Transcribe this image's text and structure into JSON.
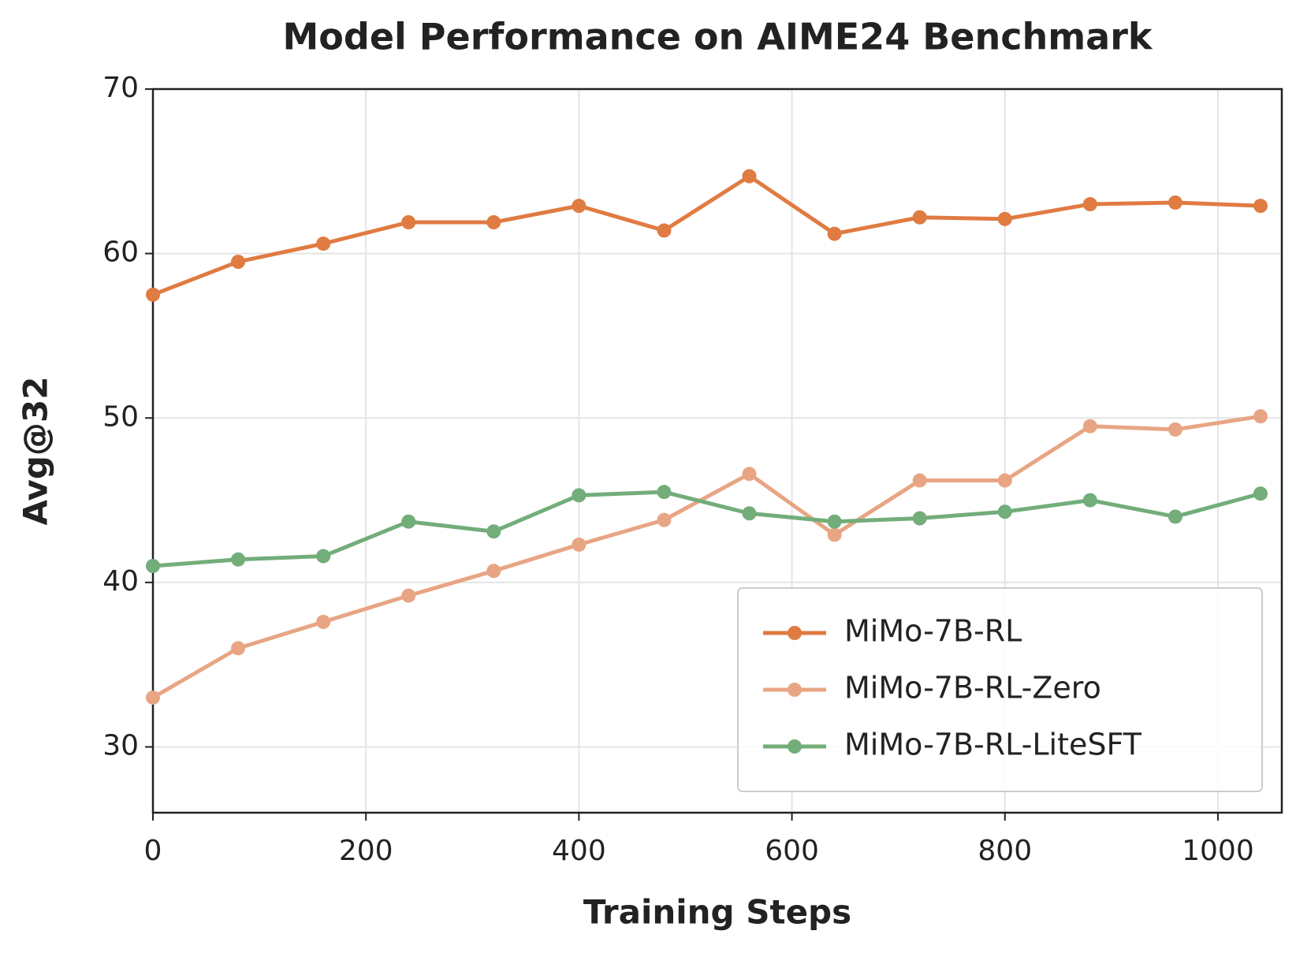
{
  "chart_data": {
    "type": "line",
    "title": "Model Performance on AIME24 Benchmark",
    "x_label": "Training Steps",
    "y_label": "Avg@32",
    "x": [
      0,
      80,
      160,
      240,
      320,
      400,
      480,
      560,
      640,
      720,
      800,
      880,
      960,
      1040
    ],
    "series": [
      {
        "name": "MiMo-7B-RL",
        "color": "#e07b42",
        "values": [
          57.5,
          59.5,
          60.6,
          61.9,
          61.9,
          62.9,
          61.4,
          64.7,
          61.2,
          62.2,
          62.1,
          63.0,
          63.1,
          62.9
        ]
      },
      {
        "name": "MiMo-7B-RL-Zero",
        "color": "#e8a584",
        "values": [
          33.0,
          36.0,
          37.6,
          39.2,
          40.7,
          42.3,
          43.8,
          46.6,
          42.9,
          46.2,
          46.2,
          49.5,
          49.3,
          50.1
        ]
      },
      {
        "name": "MiMo-7B-RL-LiteSFT",
        "color": "#72ad7a",
        "values": [
          41.0,
          41.4,
          41.6,
          43.7,
          43.1,
          45.3,
          45.5,
          44.2,
          43.7,
          43.9,
          44.3,
          45.0,
          44.0,
          45.4
        ]
      }
    ],
    "xlim": [
      0,
      1060
    ],
    "xticks": [
      0,
      200,
      400,
      600,
      800,
      1000
    ],
    "ylim": [
      26,
      70
    ],
    "yticks": [
      30,
      40,
      50,
      60,
      70
    ],
    "grid": true,
    "legend": "lower right"
  }
}
